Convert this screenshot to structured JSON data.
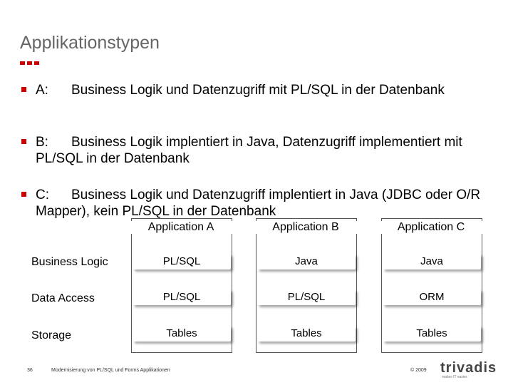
{
  "title": "Applikationstypen",
  "bullets": [
    {
      "key": "A:",
      "text": "Business Logik und Datenzugriff mit PL/SQL in der Datenbank"
    },
    {
      "key": "B:",
      "text": "Business Logik implentiert in Java, Datenzugriff implementiert mit PL/SQL in der Datenbank"
    },
    {
      "key": "C:",
      "text": "Business Logik und Datenzugriff implentiert in Java (JDBC oder O/R Mapper), kein PL/SQL in der Datenbank"
    }
  ],
  "table": {
    "columns": [
      "Application A",
      "Application B",
      "Application C"
    ],
    "rows": [
      {
        "label": "Business Logic",
        "cells": [
          "PL/SQL",
          "Java",
          "Java"
        ]
      },
      {
        "label": "Data Access",
        "cells": [
          "PL/SQL",
          "PL/SQL",
          "ORM"
        ]
      },
      {
        "label": "Storage",
        "cells": [
          "Tables",
          "Tables",
          "Tables"
        ]
      }
    ]
  },
  "footer": {
    "page": "36",
    "subtitle": "Modernisierung von PL/SQL und Forms Applikationen",
    "copyright": "© 2009",
    "logo_text": "trivadis",
    "logo_tagline": "makes IT easier."
  },
  "colors": {
    "accent": "#cc0000",
    "title": "#666666"
  }
}
